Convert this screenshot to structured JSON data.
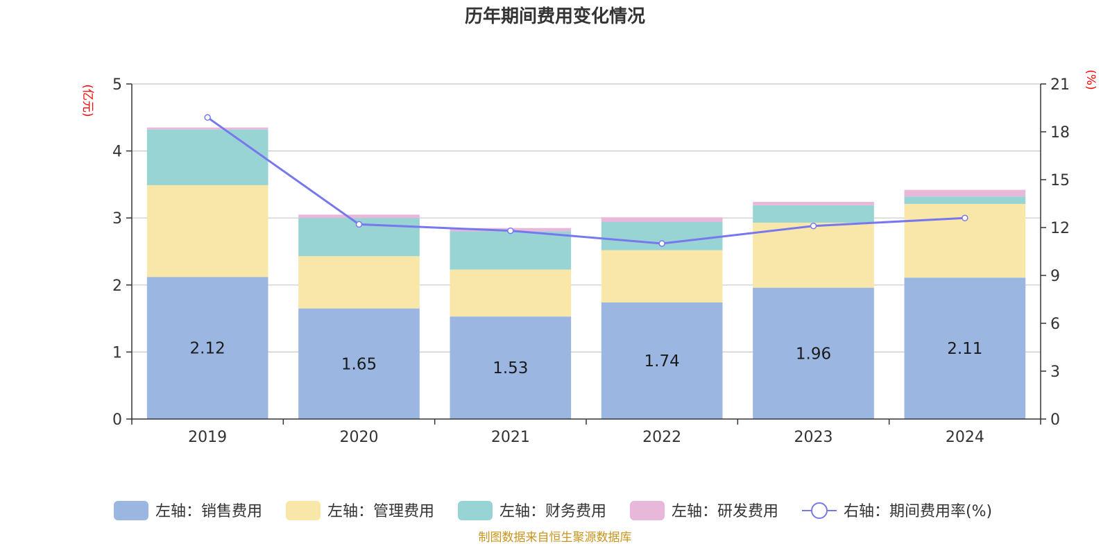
{
  "chart_data": {
    "type": "bar",
    "stacked": true,
    "title": "历年期间费用变化情况",
    "categories": [
      "2019",
      "2020",
      "2021",
      "2022",
      "2023",
      "2024"
    ],
    "left_axis": {
      "unit": "(亿元)",
      "ylim": [
        0,
        5
      ],
      "ticks": [
        "0",
        "1",
        "2",
        "3",
        "4",
        "5"
      ]
    },
    "right_axis": {
      "unit": "(%)",
      "ylim": [
        0,
        21
      ],
      "ticks": [
        "0",
        "3",
        "6",
        "9",
        "12",
        "15",
        "18",
        "21"
      ]
    },
    "series": [
      {
        "name": "左轴：销售费用",
        "axis": "left",
        "kind": "bar",
        "color": "#9bb7e1",
        "values": [
          2.12,
          1.65,
          1.53,
          1.74,
          1.96,
          2.11
        ],
        "labels": [
          "2.12",
          "1.65",
          "1.53",
          "1.74",
          "1.96",
          "2.11"
        ]
      },
      {
        "name": "左轴：管理费用",
        "axis": "left",
        "kind": "bar",
        "color": "#f8e7a8",
        "values": [
          1.37,
          0.78,
          0.7,
          0.78,
          0.97,
          1.1
        ]
      },
      {
        "name": "左轴：财务费用",
        "axis": "left",
        "kind": "bar",
        "color": "#98d4d4",
        "values": [
          0.83,
          0.57,
          0.57,
          0.42,
          0.26,
          0.11
        ]
      },
      {
        "name": "左轴：研发费用",
        "axis": "left",
        "kind": "bar",
        "color": "#e8b8db",
        "values": [
          0.03,
          0.05,
          0.05,
          0.07,
          0.05,
          0.1
        ]
      },
      {
        "name": "右轴：期间费用率(%)",
        "axis": "right",
        "kind": "line",
        "color": "#7777ee",
        "values": [
          18.9,
          12.2,
          11.8,
          11.0,
          12.1,
          12.6
        ]
      }
    ],
    "legend_position": "bottom"
  },
  "source_text": "制图数据来自恒生聚源数据库"
}
